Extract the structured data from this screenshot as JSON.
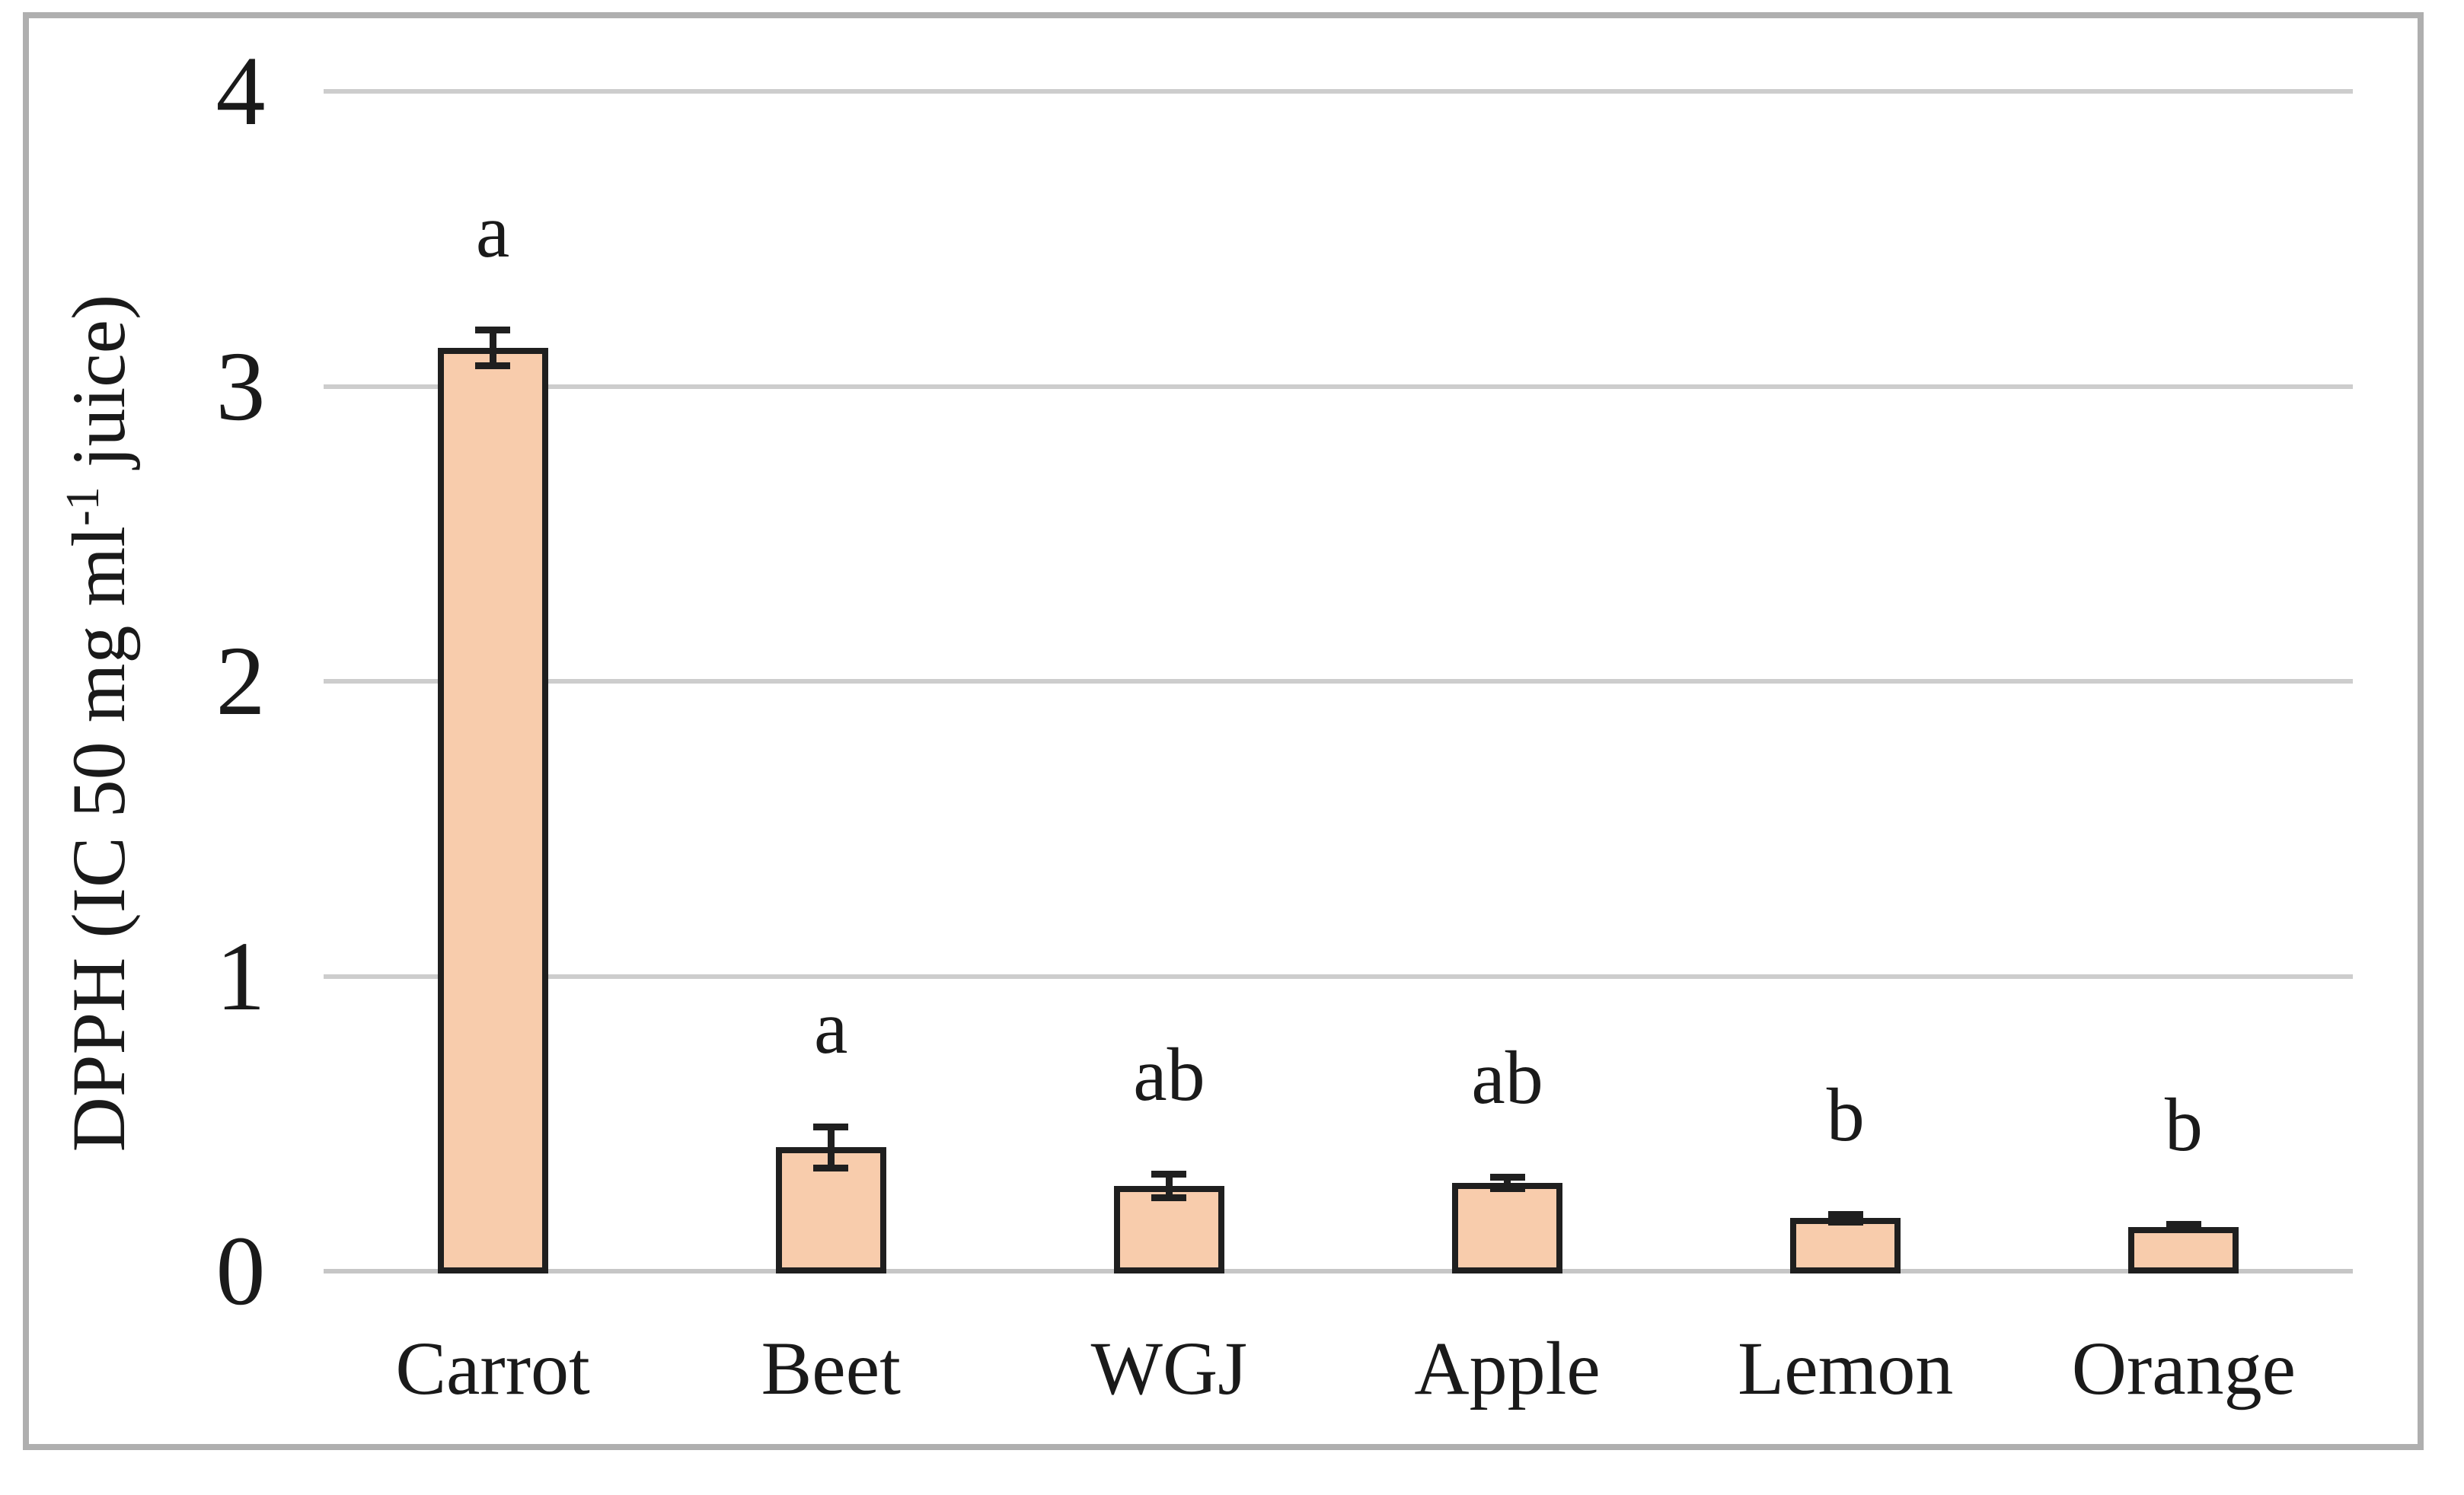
{
  "figure": {
    "y_axis_title_parts": {
      "pre": "DPPH (IC 50 mg ml",
      "sup": "-1",
      "post": " juice)"
    },
    "y_ticks": [
      "0",
      "1",
      "2",
      "3",
      "4"
    ],
    "colors": {
      "background": "#FFFFFF",
      "frame": "#AFAFAF",
      "bar_fill": "#F8CCAC",
      "bar_border": "#1F1F1F",
      "error_bar": "#1F1F1F",
      "gridline": "#CDCDCD",
      "baseline": "#C6C6C6",
      "text": "#1A1A1A"
    }
  },
  "chart_data": {
    "type": "bar",
    "title": "",
    "xlabel": "",
    "ylabel": "DPPH (IC 50 mg ml-1 juice)",
    "categories": [
      "Carrot",
      "Beet",
      "WGJ",
      "Apple",
      "Lemon",
      "Orange"
    ],
    "values": [
      3.13,
      0.42,
      0.29,
      0.3,
      0.18,
      0.15
    ],
    "error_bars": [
      0.06,
      0.07,
      0.04,
      0.02,
      0.013,
      0.01
    ],
    "significance_letters": [
      "a",
      "a",
      "ab",
      "ab",
      "b",
      "b"
    ],
    "ylim": [
      0,
      4
    ],
    "yticks": [
      0,
      1,
      2,
      3,
      4
    ],
    "grid": "horizontal-only",
    "legend": "none",
    "bar_color": "#F8CCAC",
    "bar_edge_color": "#1F1F1F"
  }
}
